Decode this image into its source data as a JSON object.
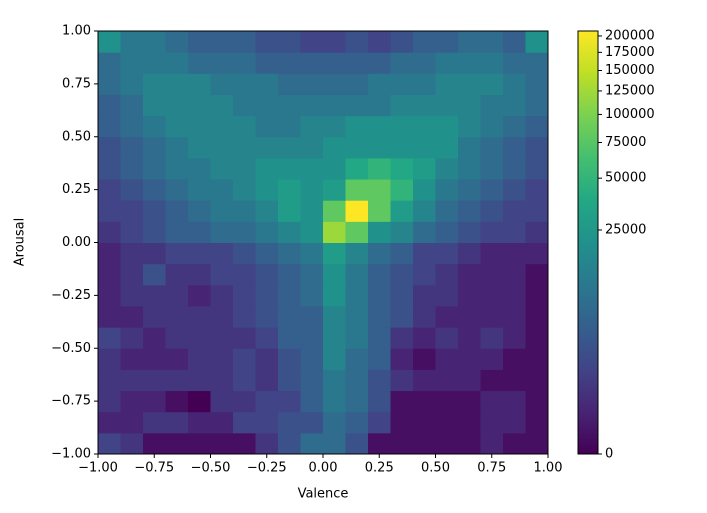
{
  "chart_data": {
    "type": "heatmap",
    "xlabel": "Valence",
    "ylabel": "Arousal",
    "colormap": "viridis",
    "xlim": [
      -1,
      1
    ],
    "ylim": [
      -1,
      1
    ],
    "xticks": [
      {
        "value": -1,
        "label": "−1.00"
      },
      {
        "value": -0.75,
        "label": "−0.75"
      },
      {
        "value": -0.5,
        "label": "−0.50"
      },
      {
        "value": -0.25,
        "label": "−0.25"
      },
      {
        "value": 0,
        "label": "0.00"
      },
      {
        "value": 0.25,
        "label": "0.25"
      },
      {
        "value": 0.5,
        "label": "0.50"
      },
      {
        "value": 0.75,
        "label": "0.75"
      },
      {
        "value": 1,
        "label": "1.00"
      }
    ],
    "yticks": [
      {
        "value": -1,
        "label": "−1.00"
      },
      {
        "value": -0.75,
        "label": "−0.75"
      },
      {
        "value": -0.5,
        "label": "−0.50"
      },
      {
        "value": -0.25,
        "label": "−0.25"
      },
      {
        "value": 0,
        "label": "0.00"
      },
      {
        "value": 0.25,
        "label": "0.25"
      },
      {
        "value": 0.5,
        "label": "0.50"
      },
      {
        "value": 0.75,
        "label": "0.75"
      },
      {
        "value": 1,
        "label": "1.00"
      }
    ],
    "colorbar": {
      "norm": "power",
      "gamma": 0.3,
      "clim": [
        0,
        208000
      ],
      "ticks": [
        0,
        25000,
        50000,
        75000,
        100000,
        125000,
        150000,
        175000,
        200000
      ]
    },
    "values": [
      [
        1000,
        400,
        5,
        5,
        5,
        5,
        5,
        400,
        2000,
        6300,
        6300,
        2000,
        5,
        5,
        5,
        5,
        5,
        100,
        5,
        5
      ],
      [
        100,
        100,
        400,
        400,
        100,
        100,
        1000,
        1000,
        2000,
        2000,
        6300,
        3800,
        1000,
        5,
        5,
        5,
        5,
        100,
        100,
        5
      ],
      [
        400,
        100,
        100,
        5,
        0,
        400,
        400,
        1000,
        1000,
        3800,
        9800,
        6300,
        2000,
        5,
        5,
        5,
        5,
        100,
        100,
        5
      ],
      [
        400,
        400,
        400,
        400,
        400,
        400,
        1000,
        400,
        2000,
        3800,
        9800,
        6300,
        2000,
        400,
        100,
        100,
        100,
        5,
        5,
        5
      ],
      [
        400,
        100,
        100,
        100,
        400,
        400,
        1000,
        400,
        2000,
        3800,
        14500,
        6300,
        3800,
        100,
        5,
        100,
        100,
        100,
        5,
        5
      ],
      [
        1000,
        400,
        100,
        400,
        400,
        400,
        400,
        1000,
        3800,
        3800,
        14500,
        9800,
        3800,
        400,
        100,
        400,
        100,
        400,
        100,
        5
      ],
      [
        100,
        100,
        400,
        400,
        400,
        400,
        1000,
        2000,
        3800,
        3800,
        14500,
        9800,
        3800,
        2000,
        400,
        100,
        100,
        100,
        100,
        5
      ],
      [
        100,
        400,
        400,
        400,
        100,
        400,
        1000,
        2000,
        3800,
        6300,
        20600,
        9800,
        3800,
        2000,
        400,
        400,
        100,
        100,
        100,
        5
      ],
      [
        100,
        400,
        2000,
        400,
        400,
        1000,
        1000,
        2000,
        3800,
        6300,
        20600,
        9800,
        3800,
        2000,
        1000,
        400,
        100,
        100,
        100,
        5
      ],
      [
        100,
        400,
        400,
        1000,
        1000,
        1000,
        2000,
        3800,
        6300,
        9800,
        28000,
        14500,
        6300,
        3800,
        1000,
        1000,
        400,
        100,
        100,
        100
      ],
      [
        400,
        1000,
        2000,
        3800,
        3800,
        6300,
        6300,
        9800,
        14500,
        20600,
        120000,
        80000,
        20600,
        14500,
        6300,
        3800,
        2000,
        1000,
        1000,
        400
      ],
      [
        1000,
        1000,
        2000,
        3800,
        6300,
        9800,
        9800,
        14500,
        28000,
        20600,
        80000,
        208000,
        80000,
        28000,
        14500,
        6300,
        3800,
        2000,
        1000,
        1000
      ],
      [
        1000,
        2000,
        3800,
        6300,
        9800,
        9800,
        14500,
        20600,
        28000,
        20600,
        28000,
        80000,
        80000,
        49000,
        20600,
        9800,
        6300,
        3800,
        2000,
        1000
      ],
      [
        2000,
        3800,
        6300,
        9800,
        9800,
        14500,
        14500,
        20600,
        20600,
        20600,
        20600,
        38000,
        49000,
        38000,
        28000,
        14500,
        9800,
        6300,
        3800,
        2000
      ],
      [
        2000,
        3800,
        6300,
        9800,
        14500,
        14500,
        14500,
        14500,
        14500,
        14500,
        20600,
        20600,
        20600,
        20600,
        20600,
        20600,
        9800,
        6300,
        3800,
        2000
      ],
      [
        3800,
        6300,
        9800,
        14500,
        14500,
        14500,
        14500,
        9800,
        9800,
        14500,
        14500,
        20600,
        20600,
        20600,
        20600,
        20600,
        14500,
        9800,
        6300,
        3800
      ],
      [
        3800,
        6300,
        14500,
        14500,
        14500,
        14500,
        9800,
        9800,
        9800,
        9800,
        9800,
        9800,
        9800,
        14500,
        14500,
        14500,
        14500,
        9800,
        9800,
        6300
      ],
      [
        6300,
        9800,
        14500,
        14500,
        14500,
        9800,
        9800,
        9800,
        6300,
        6300,
        6300,
        6300,
        9800,
        9800,
        9800,
        14500,
        14500,
        14500,
        9800,
        6300
      ],
      [
        6300,
        9800,
        9800,
        9800,
        6300,
        6300,
        6300,
        3800,
        3800,
        3800,
        3800,
        3800,
        3800,
        6300,
        6300,
        9800,
        9800,
        9800,
        6300,
        6300
      ],
      [
        20600,
        9800,
        9800,
        6300,
        3800,
        3800,
        3800,
        2000,
        2000,
        1000,
        1000,
        2000,
        1000,
        2000,
        3800,
        3800,
        6300,
        6300,
        3800,
        20600
      ]
    ]
  }
}
